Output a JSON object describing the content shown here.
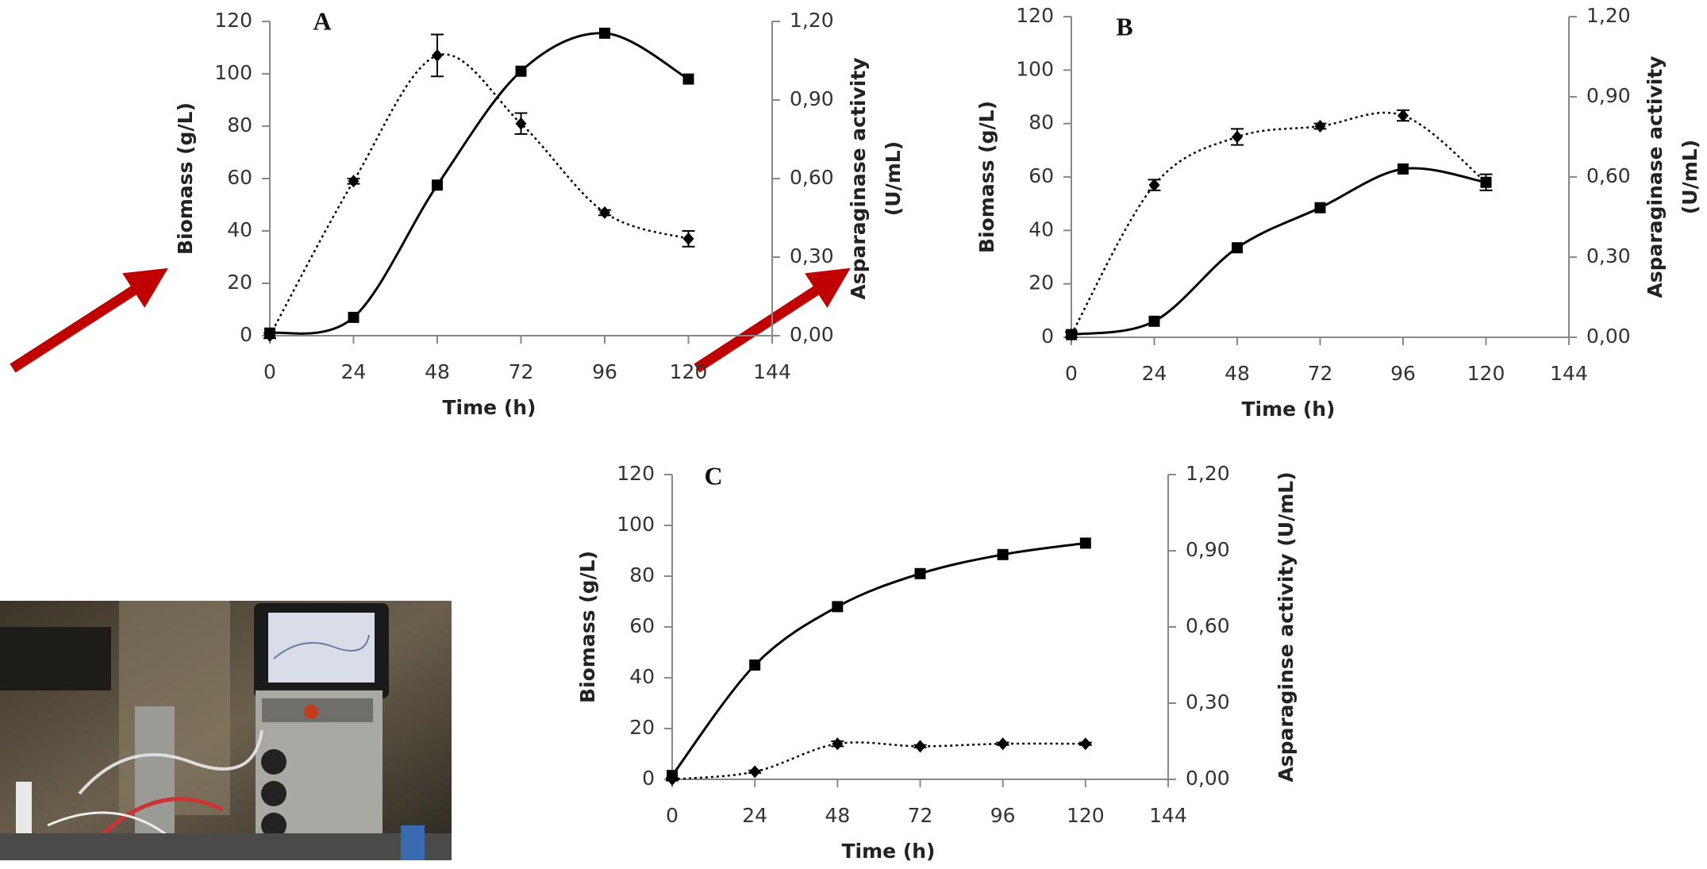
{
  "chart_data": [
    {
      "type": "line",
      "title": "A",
      "xlabel": "Time (h)",
      "ylabel": "Biomass (g/L)",
      "y2label": [
        "Asparaginase activity",
        "(U/mL)"
      ],
      "x": [
        0,
        24,
        48,
        72,
        96,
        120
      ],
      "xlim": [
        0,
        144
      ],
      "xticks": [
        0,
        24,
        48,
        72,
        96,
        120,
        144
      ],
      "ylim": [
        0,
        120
      ],
      "yticks": [
        0,
        20,
        40,
        60,
        80,
        100,
        120
      ],
      "y2lim": [
        0,
        1.2
      ],
      "y2ticks": [
        {
          "value": 0,
          "label": "0,00"
        },
        {
          "value": 0.3,
          "label": "0,30"
        },
        {
          "value": 0.6,
          "label": "0,60"
        },
        {
          "value": 0.9,
          "label": "0,90"
        },
        {
          "value": 1.2,
          "label": "1,20"
        }
      ],
      "series": [
        {
          "color": "#000000",
          "dash": "solid",
          "marker": "square",
          "values": [
            1,
            7,
            57.5,
            101,
            115.5,
            98
          ]
        },
        {
          "color": "#000000",
          "dash": "dotted",
          "marker": "diamond",
          "axis": "y2",
          "values": [
            0.0,
            0.59,
            1.07,
            0.81,
            0.47,
            0.37
          ],
          "errors": [
            0.01,
            0.01,
            0.08,
            0.04,
            0.01,
            0.03
          ]
        }
      ]
    },
    {
      "type": "line",
      "title": "B",
      "xlabel": "Time (h)",
      "ylabel": "Biomass (g/L)",
      "y2label": [
        "Asparaginase activity",
        "(U/mL)"
      ],
      "x": [
        0,
        24,
        48,
        72,
        96,
        120
      ],
      "xlim": [
        0,
        144
      ],
      "xticks": [
        0,
        24,
        48,
        72,
        96,
        120,
        144
      ],
      "ylim": [
        0,
        120
      ],
      "yticks": [
        0,
        20,
        40,
        60,
        80,
        100,
        120
      ],
      "y2lim": [
        0,
        1.2
      ],
      "y2ticks": [
        {
          "value": 0,
          "label": "0,00"
        },
        {
          "value": 0.3,
          "label": "0,30"
        },
        {
          "value": 0.6,
          "label": "0,60"
        },
        {
          "value": 0.9,
          "label": "0,90"
        },
        {
          "value": 1.2,
          "label": "1,20"
        }
      ],
      "series": [
        {
          "color": "#000000",
          "dash": "solid",
          "marker": "square",
          "values": [
            1,
            6,
            33.5,
            48.5,
            63,
            58
          ]
        },
        {
          "color": "#000000",
          "dash": "dotted",
          "marker": "diamond",
          "axis": "y2",
          "values": [
            0.01,
            0.57,
            0.75,
            0.79,
            0.83,
            0.58
          ],
          "errors": [
            0.01,
            0.02,
            0.03,
            0.01,
            0.02,
            0.03
          ]
        }
      ]
    },
    {
      "type": "line",
      "title": "C",
      "xlabel": "Time (h)",
      "ylabel": "Biomass (g/L)",
      "y2label": [
        "Asparaginse activity (U/mL)"
      ],
      "x": [
        0,
        24,
        48,
        72,
        96,
        120
      ],
      "xlim": [
        0,
        144
      ],
      "xticks": [
        0,
        24,
        48,
        72,
        96,
        120,
        144
      ],
      "ylim": [
        0,
        120
      ],
      "yticks": [
        0,
        20,
        40,
        60,
        80,
        100,
        120
      ],
      "y2lim": [
        0,
        1.2
      ],
      "y2ticks": [
        {
          "value": 0,
          "label": "0,00"
        },
        {
          "value": 0.3,
          "label": "0,30"
        },
        {
          "value": 0.6,
          "label": "0,60"
        },
        {
          "value": 0.9,
          "label": "0,90"
        },
        {
          "value": 1.2,
          "label": "1,20"
        }
      ],
      "series": [
        {
          "color": "#000000",
          "dash": "solid",
          "marker": "square",
          "values": [
            1.5,
            45,
            68,
            81,
            88.5,
            93
          ]
        },
        {
          "color": "#000000",
          "dash": "dotted",
          "marker": "diamond",
          "axis": "y2",
          "values": [
            0.0,
            0.03,
            0.14,
            0.13,
            0.14,
            0.14
          ],
          "errors": [
            0.005,
            0.005,
            0.01,
            0.005,
            0.005,
            0.005
          ]
        }
      ]
    }
  ]
}
